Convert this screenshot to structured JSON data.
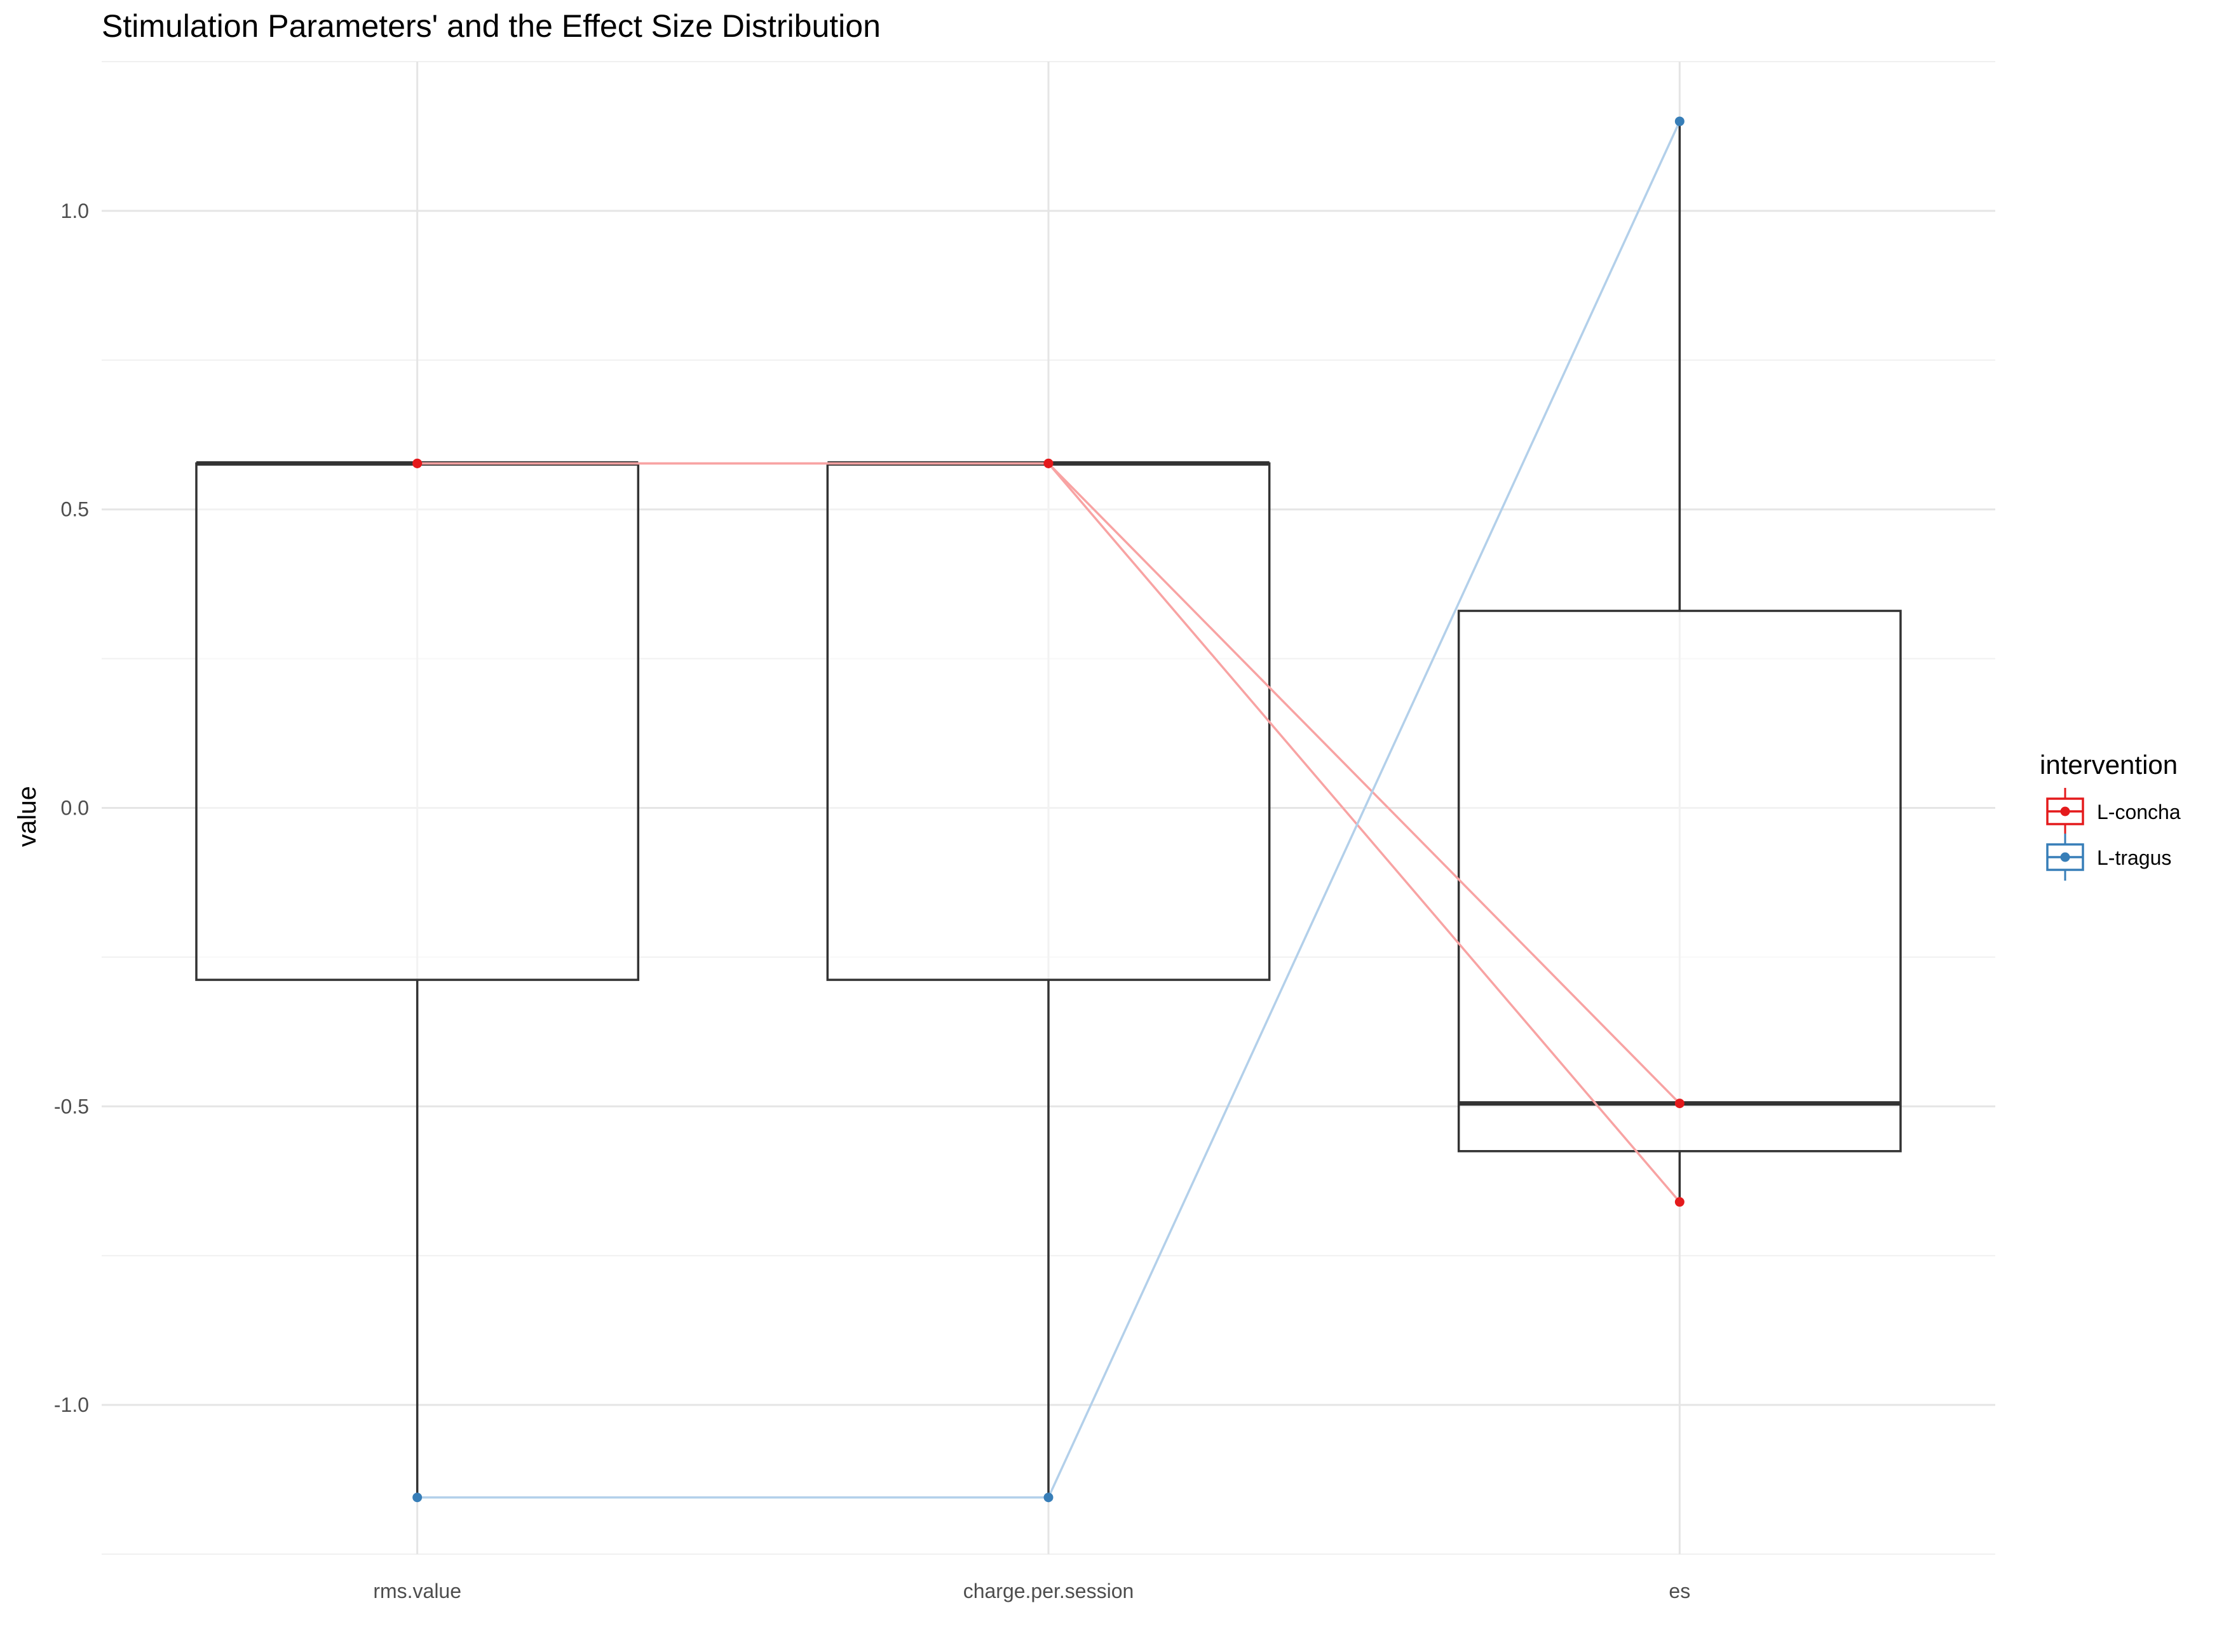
{
  "chart_data": {
    "type": "box",
    "title": "Stimulation Parameters' and the Effect Size Distribution",
    "xlabel": "",
    "ylabel": "value",
    "categories": [
      "rms.value",
      "charge.per.session",
      "es"
    ],
    "ylim": [
      -1.25,
      1.25
    ],
    "yticks": [
      -1.0,
      -0.5,
      0.0,
      0.5,
      1.0
    ],
    "ytick_labels": [
      "-1.0",
      "-0.5",
      "0.0",
      "0.5",
      "1.0"
    ],
    "grid": true,
    "legend": {
      "title": "intervention",
      "position": "right",
      "entries": [
        {
          "label": "L-concha",
          "color": "#e41a1c"
        },
        {
          "label": "L-tragus",
          "color": "#377eb8"
        }
      ]
    },
    "boxes": [
      {
        "category": "rms.value",
        "min": -1.155,
        "q1": -0.288,
        "median": 0.577,
        "q3": 0.577,
        "max": 0.577
      },
      {
        "category": "charge.per.session",
        "min": -1.155,
        "q1": -0.288,
        "median": 0.577,
        "q3": 0.577,
        "max": 0.577
      },
      {
        "category": "es",
        "min": -0.66,
        "q1": -0.575,
        "median": -0.495,
        "q3": 0.33,
        "max": 1.15
      }
    ],
    "series": [
      {
        "name": "L-concha",
        "color": "#e41a1c",
        "line_color": "#f8a3a3",
        "values": [
          0.577,
          0.577,
          -0.495
        ]
      },
      {
        "name": "L-concha",
        "color": "#e41a1c",
        "line_color": "#f8a3a3",
        "values": [
          0.577,
          0.577,
          -0.66
        ]
      },
      {
        "name": "L-tragus",
        "color": "#377eb8",
        "line_color": "#b3d0ea",
        "values": [
          -1.155,
          -1.155,
          1.15
        ]
      }
    ]
  }
}
